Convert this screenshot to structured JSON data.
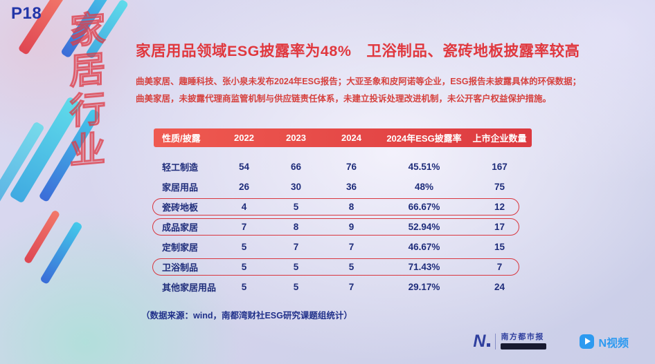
{
  "slide": {
    "page_number": "P18",
    "side_watermark": "家居行业",
    "title": "家居用品领域ESG披露率为48%　卫浴制品、瓷砖地板披露率较高",
    "subtitle_lines": [
      "曲美家居、趣睡科技、张小泉未发布2024年ESG报告；大亚圣象和皮阿诺等企业，ESG报告未披露具体的环保数据；",
      "曲美家居，未披露代理商监管机制与供应链责任体系，未建立投诉处理改进机制，未公开客户权益保护措施。"
    ],
    "source_note": "（数据来源：wind，南都湾财社ESG研究课题组统计）"
  },
  "chart_data": {
    "type": "table",
    "columns": [
      "性质/披露",
      "2022",
      "2023",
      "2024",
      "2024年ESG披露率",
      "上市企业数量"
    ],
    "rows": [
      {
        "label": "轻工制造",
        "v2022": "54",
        "v2023": "66",
        "v2024": "76",
        "rate": "45.51%",
        "count": "167",
        "highlighted": false
      },
      {
        "label": "家居用品",
        "v2022": "26",
        "v2023": "30",
        "v2024": "36",
        "rate": "48%",
        "count": "75",
        "highlighted": false
      },
      {
        "label": "瓷砖地板",
        "v2022": "4",
        "v2023": "5",
        "v2024": "8",
        "rate": "66.67%",
        "count": "12",
        "highlighted": true
      },
      {
        "label": "成品家居",
        "v2022": "7",
        "v2023": "8",
        "v2024": "9",
        "rate": "52.94%",
        "count": "17",
        "highlighted": true
      },
      {
        "label": "定制家居",
        "v2022": "5",
        "v2023": "7",
        "v2024": "7",
        "rate": "46.67%",
        "count": "15",
        "highlighted": false
      },
      {
        "label": "卫浴制品",
        "v2022": "5",
        "v2023": "5",
        "v2024": "5",
        "rate": "71.43%",
        "count": "7",
        "highlighted": true
      },
      {
        "label": "其他家居用品",
        "v2022": "5",
        "v2023": "5",
        "v2024": "7",
        "rate": "29.17%",
        "count": "24",
        "highlighted": false
      }
    ],
    "highlight_color": "#d9363e",
    "header_colors": {
      "start": "#ef5a50",
      "end": "#dc3a40"
    },
    "body_text_color": "#1e2c7a"
  },
  "colors": {
    "title_red": "#e0383e",
    "page_number_blue": "#2336a8",
    "nandu_navy": "#2f3f9e",
    "nvideo_blue": "#2d9af0"
  },
  "footer": {
    "nandu": {
      "mark": "N",
      "name": "南方都市报"
    },
    "nvideo": {
      "name": "N视频"
    }
  }
}
